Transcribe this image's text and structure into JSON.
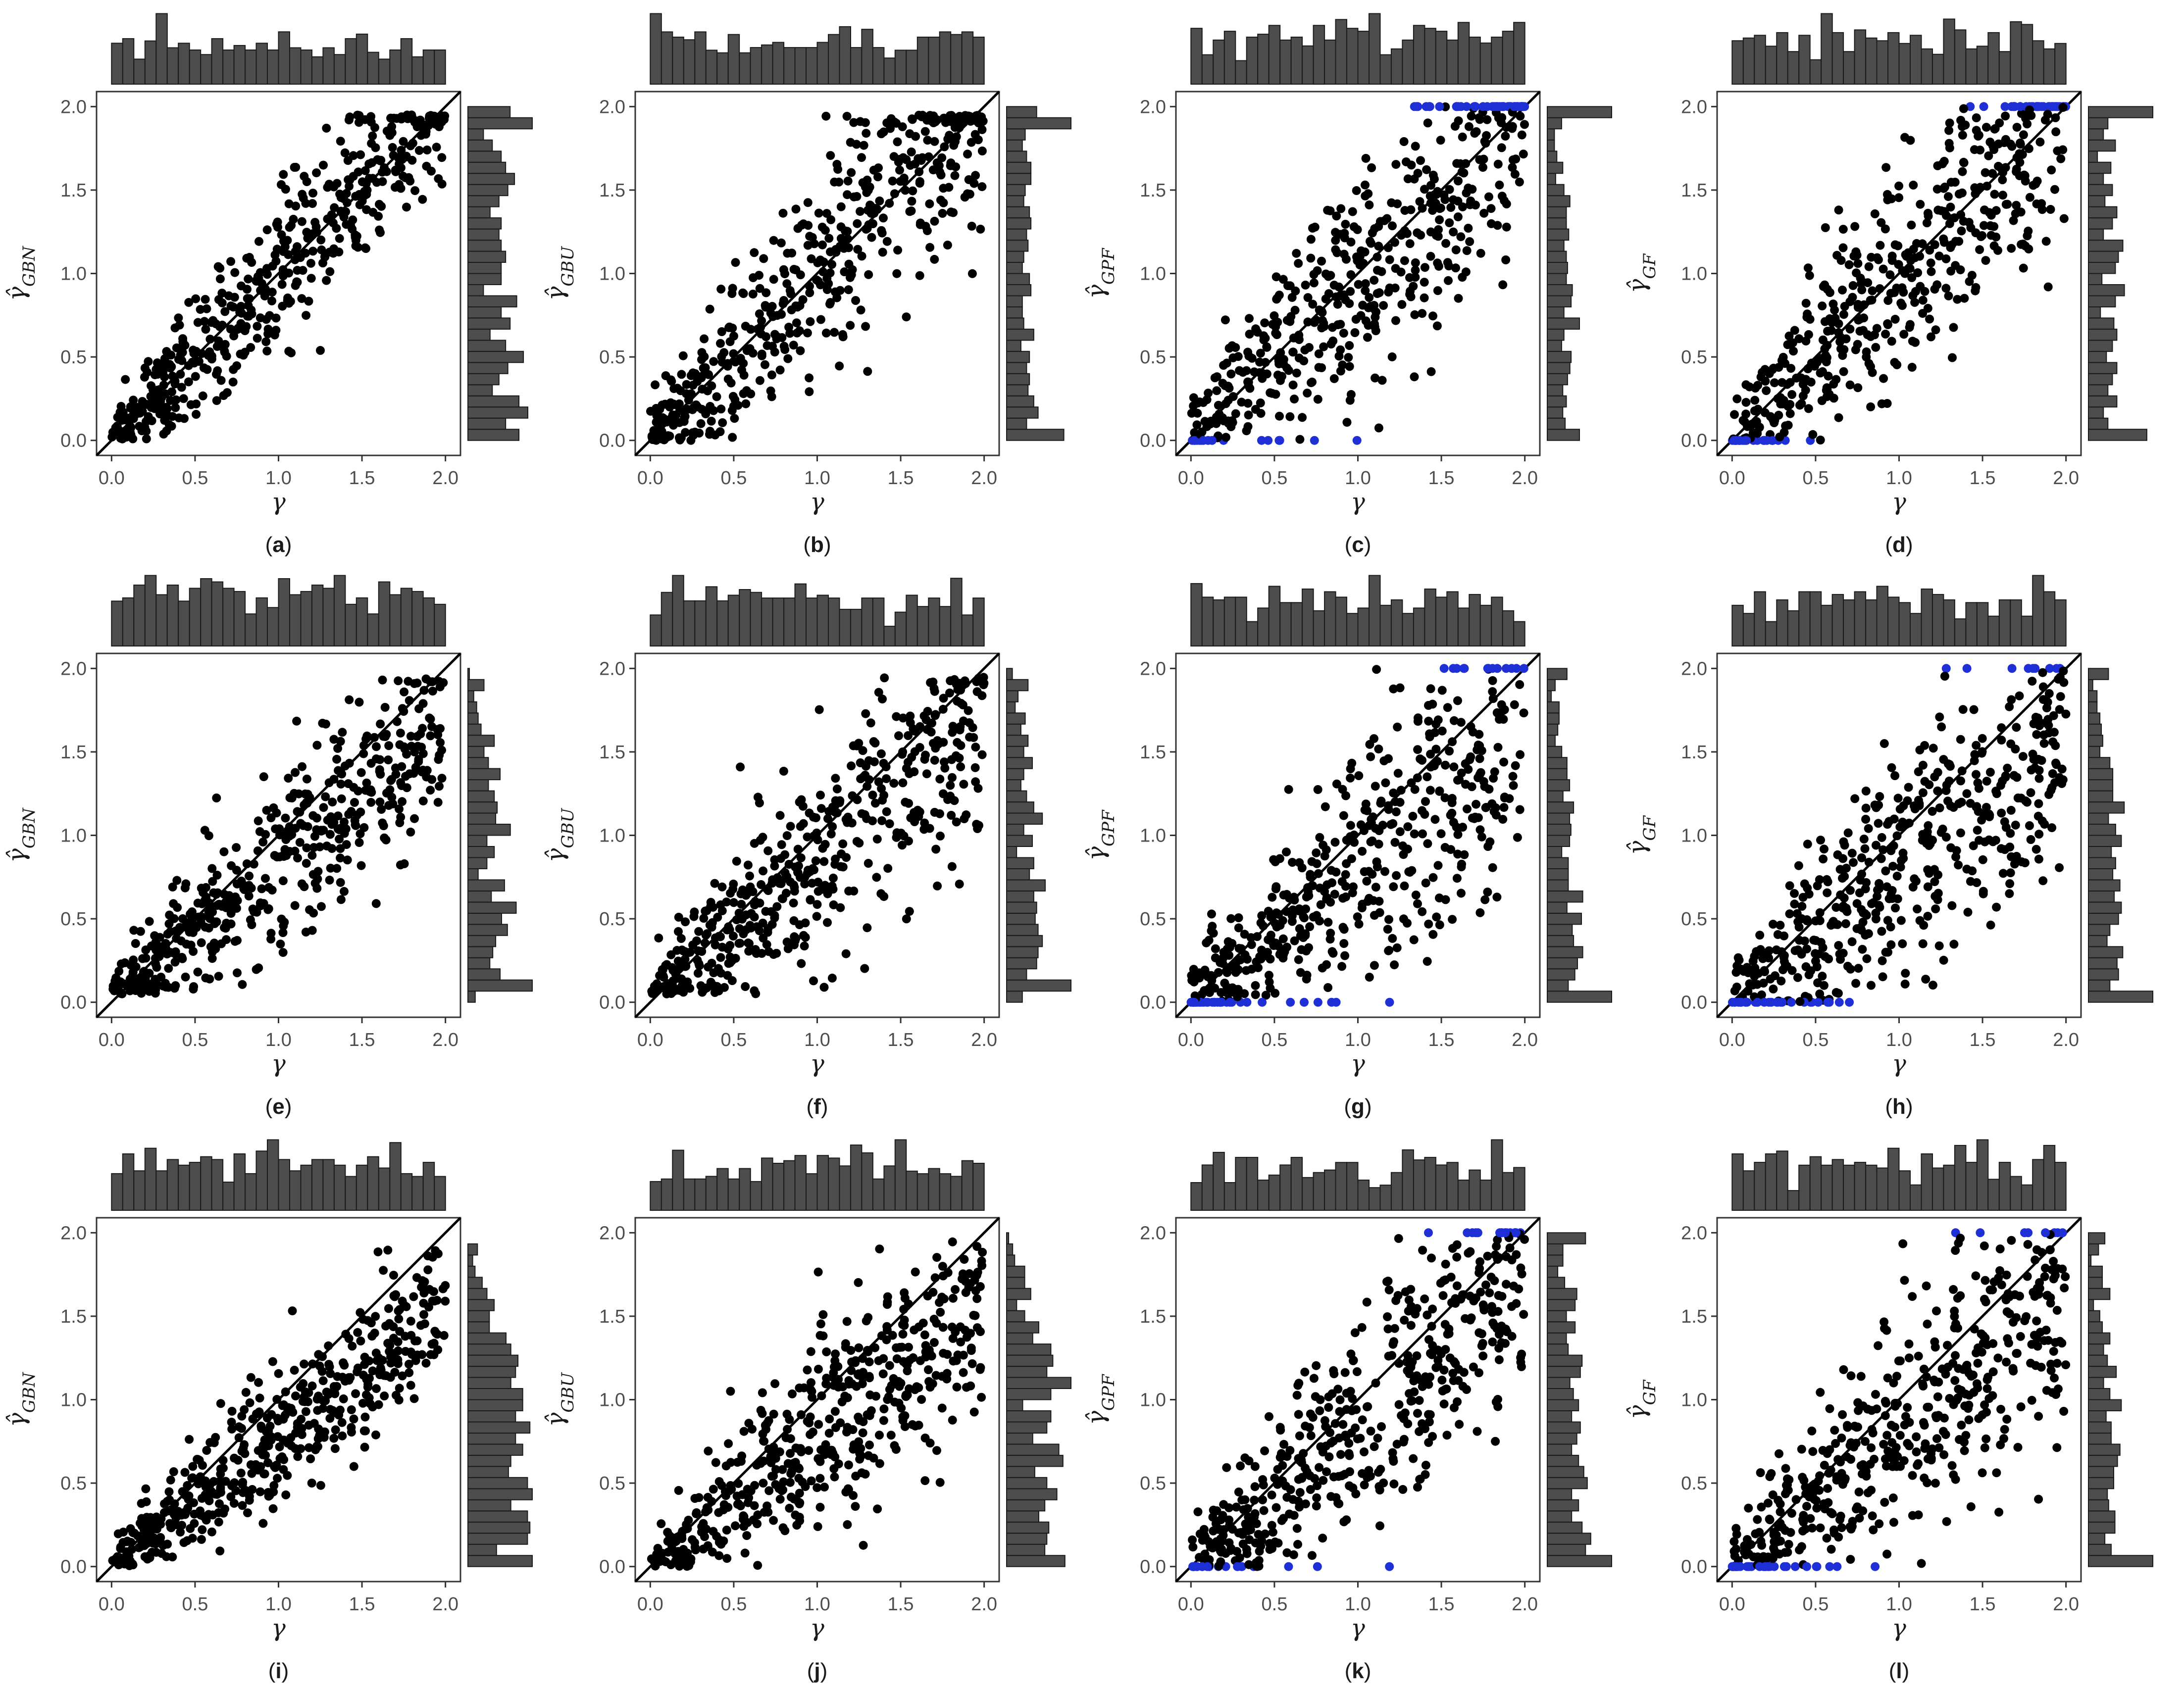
{
  "figure": {
    "description_colors": {
      "point": "#000000",
      "boundary_point": "#1f2fd6",
      "bar_fill": "#4d4d4d",
      "bar_stroke": "#1a1a1a",
      "frame": "#333333"
    }
  },
  "chart_data": [
    {
      "id": "a",
      "type": "scatter",
      "label": "a",
      "xlabel": "γ",
      "ylabel_main": "γ̂",
      "ylabel_sub": "GBN",
      "xlim": [
        0,
        2
      ],
      "ylim": [
        0,
        2
      ],
      "xticks": [
        "0.0",
        "0.5",
        "1.0",
        "1.5",
        "2.0"
      ],
      "yticks": [
        "0.0",
        "0.5",
        "1.0",
        "1.5",
        "2.0"
      ],
      "identity_line": true,
      "n_points": 500,
      "bias": 0.0,
      "spread": 0.25,
      "boundary": false,
      "clamp_low": 0.0,
      "clamp_high": 1.95,
      "seed": 11
    },
    {
      "id": "b",
      "type": "scatter",
      "label": "b",
      "xlabel": "γ",
      "ylabel_main": "γ̂",
      "ylabel_sub": "GBU",
      "xlim": [
        0,
        2
      ],
      "ylim": [
        0,
        2
      ],
      "xticks": [
        "0.0",
        "0.5",
        "1.0",
        "1.5",
        "2.0"
      ],
      "yticks": [
        "0.0",
        "0.5",
        "1.0",
        "1.5",
        "2.0"
      ],
      "identity_line": true,
      "n_points": 500,
      "bias": 0.0,
      "spread": 0.32,
      "boundary": false,
      "clamp_low": 0.0,
      "clamp_high": 1.95,
      "seed": 23
    },
    {
      "id": "c",
      "type": "scatter",
      "label": "c",
      "xlabel": "γ",
      "ylabel_main": "γ̂",
      "ylabel_sub": "GPF",
      "xlim": [
        0,
        2
      ],
      "ylim": [
        0,
        2
      ],
      "xticks": [
        "0.0",
        "0.5",
        "1.0",
        "1.5",
        "2.0"
      ],
      "yticks": [
        "0.0",
        "0.5",
        "1.0",
        "1.5",
        "2.0"
      ],
      "identity_line": true,
      "n_points": 500,
      "bias": 0.0,
      "spread": 0.38,
      "boundary": true,
      "clamp_low": 0.0,
      "clamp_high": 2.0,
      "seed": 37
    },
    {
      "id": "d",
      "type": "scatter",
      "label": "d",
      "xlabel": "γ",
      "ylabel_main": "γ̂",
      "ylabel_sub": "GF",
      "xlim": [
        0,
        2
      ],
      "ylim": [
        0,
        2
      ],
      "xticks": [
        "0.0",
        "0.5",
        "1.0",
        "1.5",
        "2.0"
      ],
      "yticks": [
        "0.0",
        "0.5",
        "1.0",
        "1.5",
        "2.0"
      ],
      "identity_line": true,
      "n_points": 500,
      "bias": 0.0,
      "spread": 0.38,
      "boundary": true,
      "clamp_low": 0.0,
      "clamp_high": 2.0,
      "seed": 41
    },
    {
      "id": "e",
      "type": "scatter",
      "label": "e",
      "xlabel": "γ",
      "ylabel_main": "γ̂",
      "ylabel_sub": "GBN",
      "xlim": [
        0,
        2
      ],
      "ylim": [
        0,
        2
      ],
      "xticks": [
        "0.0",
        "0.5",
        "1.0",
        "1.5",
        "2.0"
      ],
      "yticks": [
        "0.0",
        "0.5",
        "1.0",
        "1.5",
        "2.0"
      ],
      "identity_line": true,
      "n_points": 500,
      "bias": -0.15,
      "spread": 0.28,
      "boundary": false,
      "clamp_low": 0.05,
      "clamp_high": 1.95,
      "seed": 53
    },
    {
      "id": "f",
      "type": "scatter",
      "label": "f",
      "xlabel": "γ",
      "ylabel_main": "γ̂",
      "ylabel_sub": "GBU",
      "xlim": [
        0,
        2
      ],
      "ylim": [
        0,
        2
      ],
      "xticks": [
        "0.0",
        "0.5",
        "1.0",
        "1.5",
        "2.0"
      ],
      "yticks": [
        "0.0",
        "0.5",
        "1.0",
        "1.5",
        "2.0"
      ],
      "identity_line": true,
      "n_points": 500,
      "bias": -0.15,
      "spread": 0.33,
      "boundary": false,
      "clamp_low": 0.05,
      "clamp_high": 1.95,
      "seed": 67
    },
    {
      "id": "g",
      "type": "scatter",
      "label": "g",
      "xlabel": "γ",
      "ylabel_main": "γ̂",
      "ylabel_sub": "GPF",
      "xlim": [
        0,
        2
      ],
      "ylim": [
        0,
        2
      ],
      "xticks": [
        "0.0",
        "0.5",
        "1.0",
        "1.5",
        "2.0"
      ],
      "yticks": [
        "0.0",
        "0.5",
        "1.0",
        "1.5",
        "2.0"
      ],
      "identity_line": true,
      "n_points": 500,
      "bias": -0.2,
      "spread": 0.4,
      "boundary": true,
      "clamp_low": 0.0,
      "clamp_high": 2.0,
      "seed": 71
    },
    {
      "id": "h",
      "type": "scatter",
      "label": "h",
      "xlabel": "γ",
      "ylabel_main": "γ̂",
      "ylabel_sub": "GF",
      "xlim": [
        0,
        2
      ],
      "ylim": [
        0,
        2
      ],
      "xticks": [
        "0.0",
        "0.5",
        "1.0",
        "1.5",
        "2.0"
      ],
      "yticks": [
        "0.0",
        "0.5",
        "1.0",
        "1.5",
        "2.0"
      ],
      "identity_line": true,
      "n_points": 500,
      "bias": -0.2,
      "spread": 0.4,
      "boundary": true,
      "clamp_low": 0.0,
      "clamp_high": 2.0,
      "seed": 83
    },
    {
      "id": "i",
      "type": "scatter",
      "label": "i",
      "xlabel": "γ",
      "ylabel_main": "γ̂",
      "ylabel_sub": "GBN",
      "xlim": [
        0,
        2
      ],
      "ylim": [
        0,
        2
      ],
      "xticks": [
        "0.0",
        "0.5",
        "1.0",
        "1.5",
        "2.0"
      ],
      "yticks": [
        "0.0",
        "0.5",
        "1.0",
        "1.5",
        "2.0"
      ],
      "identity_line": true,
      "n_points": 500,
      "bias": -0.22,
      "spread": 0.22,
      "boundary": false,
      "clamp_low": 0.0,
      "clamp_high": 1.9,
      "seed": 97
    },
    {
      "id": "j",
      "type": "scatter",
      "label": "j",
      "xlabel": "γ",
      "ylabel_main": "γ̂",
      "ylabel_sub": "GBU",
      "xlim": [
        0,
        2
      ],
      "ylim": [
        0,
        2
      ],
      "xticks": [
        "0.0",
        "0.5",
        "1.0",
        "1.5",
        "2.0"
      ],
      "yticks": [
        "0.0",
        "0.5",
        "1.0",
        "1.5",
        "2.0"
      ],
      "identity_line": true,
      "n_points": 500,
      "bias": -0.22,
      "spread": 0.3,
      "boundary": false,
      "clamp_low": 0.0,
      "clamp_high": 1.95,
      "seed": 101
    },
    {
      "id": "k",
      "type": "scatter",
      "label": "k",
      "xlabel": "γ",
      "ylabel_main": "γ̂",
      "ylabel_sub": "GPF",
      "xlim": [
        0,
        2
      ],
      "ylim": [
        0,
        2
      ],
      "xticks": [
        "0.0",
        "0.5",
        "1.0",
        "1.5",
        "2.0"
      ],
      "yticks": [
        "0.0",
        "0.5",
        "1.0",
        "1.5",
        "2.0"
      ],
      "identity_line": true,
      "n_points": 500,
      "bias": -0.15,
      "spread": 0.38,
      "boundary": true,
      "clamp_low": 0.0,
      "clamp_high": 2.0,
      "seed": 113
    },
    {
      "id": "l",
      "type": "scatter",
      "label": "l",
      "xlabel": "γ",
      "ylabel_main": "γ̂",
      "ylabel_sub": "GF",
      "xlim": [
        0,
        2
      ],
      "ylim": [
        0,
        2
      ],
      "xticks": [
        "0.0",
        "0.5",
        "1.0",
        "1.5",
        "2.0"
      ],
      "yticks": [
        "0.0",
        "0.5",
        "1.0",
        "1.5",
        "2.0"
      ],
      "identity_line": true,
      "n_points": 500,
      "bias": -0.15,
      "spread": 0.38,
      "boundary": true,
      "clamp_low": 0.0,
      "clamp_high": 2.0,
      "seed": 127
    }
  ]
}
